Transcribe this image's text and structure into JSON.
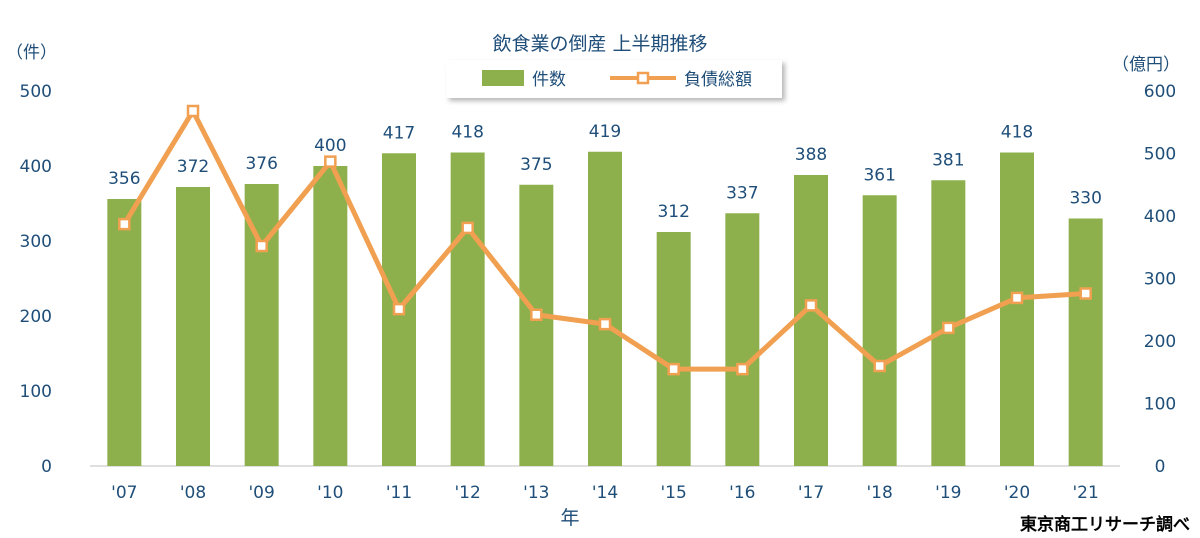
{
  "chart_data": {
    "type": "bar",
    "title": "飲食業の倒産 上半期推移",
    "categories": [
      "'07",
      "'08",
      "'09",
      "'10",
      "'11",
      "'12",
      "'13",
      "'14",
      "'15",
      "'16",
      "'17",
      "'18",
      "'19",
      "'20",
      "'21"
    ],
    "series": [
      {
        "name": "件数",
        "type": "bar",
        "axis": "left",
        "color": "#8db04c",
        "values": [
          356,
          372,
          376,
          400,
          417,
          418,
          375,
          419,
          312,
          337,
          388,
          361,
          381,
          418,
          330
        ]
      },
      {
        "name": "負債総額",
        "type": "line",
        "axis": "right",
        "color": "#f0a050",
        "values": [
          387,
          568,
          352,
          487,
          251,
          381,
          242,
          227,
          155,
          155,
          257,
          160,
          221,
          269,
          276
        ]
      }
    ],
    "y_left": {
      "unit_label": "（件）",
      "min": 0,
      "max": 500,
      "ticks": [
        0,
        100,
        200,
        300,
        400,
        500
      ]
    },
    "y_right": {
      "unit_label": "（億円）",
      "min": 0,
      "max": 600,
      "ticks": [
        0,
        100,
        200,
        300,
        400,
        500,
        600
      ]
    },
    "xlabel": "年",
    "legend_position": "top-center",
    "grid": false
  },
  "source_note": "東京商工リサーチ調べ"
}
